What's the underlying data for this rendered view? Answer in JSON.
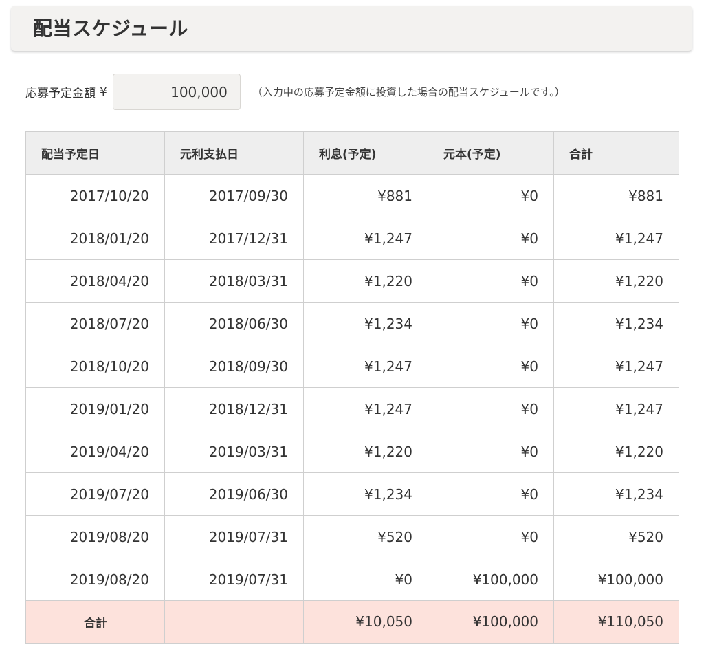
{
  "header": {
    "title": "配当スケジュール"
  },
  "amount": {
    "label": "応募予定金額",
    "currency": "¥",
    "value": "100,000",
    "note": "（入力中の応募予定金額に投資した場合の配当スケジュールです。）"
  },
  "table": {
    "headers": [
      "配当予定日",
      "元利支払日",
      "利息(予定)",
      "元本(予定)",
      "合計"
    ],
    "rows": [
      [
        "2017/10/20",
        "2017/09/30",
        "¥881",
        "¥0",
        "¥881"
      ],
      [
        "2018/01/20",
        "2017/12/31",
        "¥1,247",
        "¥0",
        "¥1,247"
      ],
      [
        "2018/04/20",
        "2018/03/31",
        "¥1,220",
        "¥0",
        "¥1,220"
      ],
      [
        "2018/07/20",
        "2018/06/30",
        "¥1,234",
        "¥0",
        "¥1,234"
      ],
      [
        "2018/10/20",
        "2018/09/30",
        "¥1,247",
        "¥0",
        "¥1,247"
      ],
      [
        "2019/01/20",
        "2018/12/31",
        "¥1,247",
        "¥0",
        "¥1,247"
      ],
      [
        "2019/04/20",
        "2019/03/31",
        "¥1,220",
        "¥0",
        "¥1,220"
      ],
      [
        "2019/07/20",
        "2019/06/30",
        "¥1,234",
        "¥0",
        "¥1,234"
      ],
      [
        "2019/08/20",
        "2019/07/31",
        "¥520",
        "¥0",
        "¥520"
      ],
      [
        "2019/08/20",
        "2019/07/31",
        "¥0",
        "¥100,000",
        "¥100,000"
      ]
    ],
    "total": {
      "label": "合計",
      "payment_date": "",
      "interest": "¥10,050",
      "principal": "¥100,000",
      "sum": "¥110,050"
    }
  },
  "colors": {
    "header_bg": "#f3f2f0",
    "table_header_bg": "#eeeeee",
    "total_row_bg": "#fde2dc",
    "border": "#cfcfcf"
  }
}
